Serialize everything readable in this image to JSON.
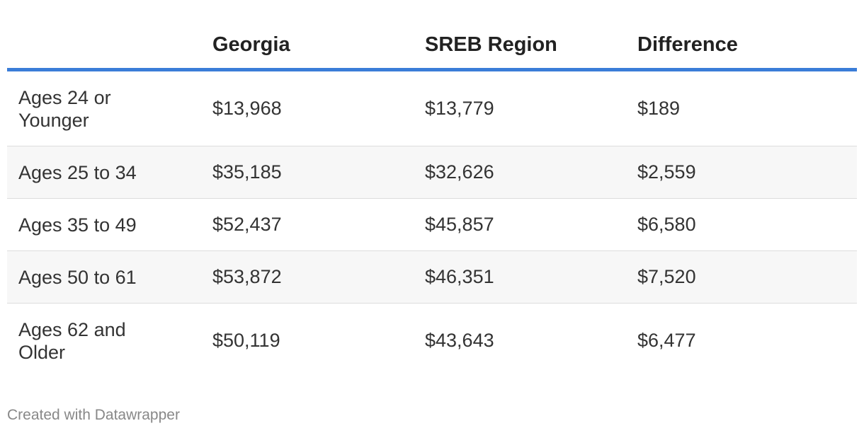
{
  "chart_data": {
    "type": "table",
    "columns": [
      "",
      "Georgia",
      "SREB Region",
      "Difference"
    ],
    "rows": [
      {
        "label": "Ages 24 or Younger",
        "georgia": "$13,968",
        "sreb": "$13,779",
        "difference": "$189"
      },
      {
        "label": "Ages 25 to 34",
        "georgia": "$35,185",
        "sreb": "$32,626",
        "difference": "$2,559"
      },
      {
        "label": "Ages 35 to 49",
        "georgia": "$52,437",
        "sreb": "$45,857",
        "difference": "$6,580"
      },
      {
        "label": "Ages 50 to 61",
        "georgia": "$53,872",
        "sreb": "$46,351",
        "difference": "$7,520"
      },
      {
        "label": "Ages 62 and Older",
        "georgia": "$50,119",
        "sreb": "$43,643",
        "difference": "$6,477"
      }
    ]
  },
  "footer": {
    "credit": "Created with Datawrapper"
  },
  "colors": {
    "header_rule": "#3a7dd8",
    "stripe": "#f7f7f7",
    "row_divider": "#dddddd"
  }
}
